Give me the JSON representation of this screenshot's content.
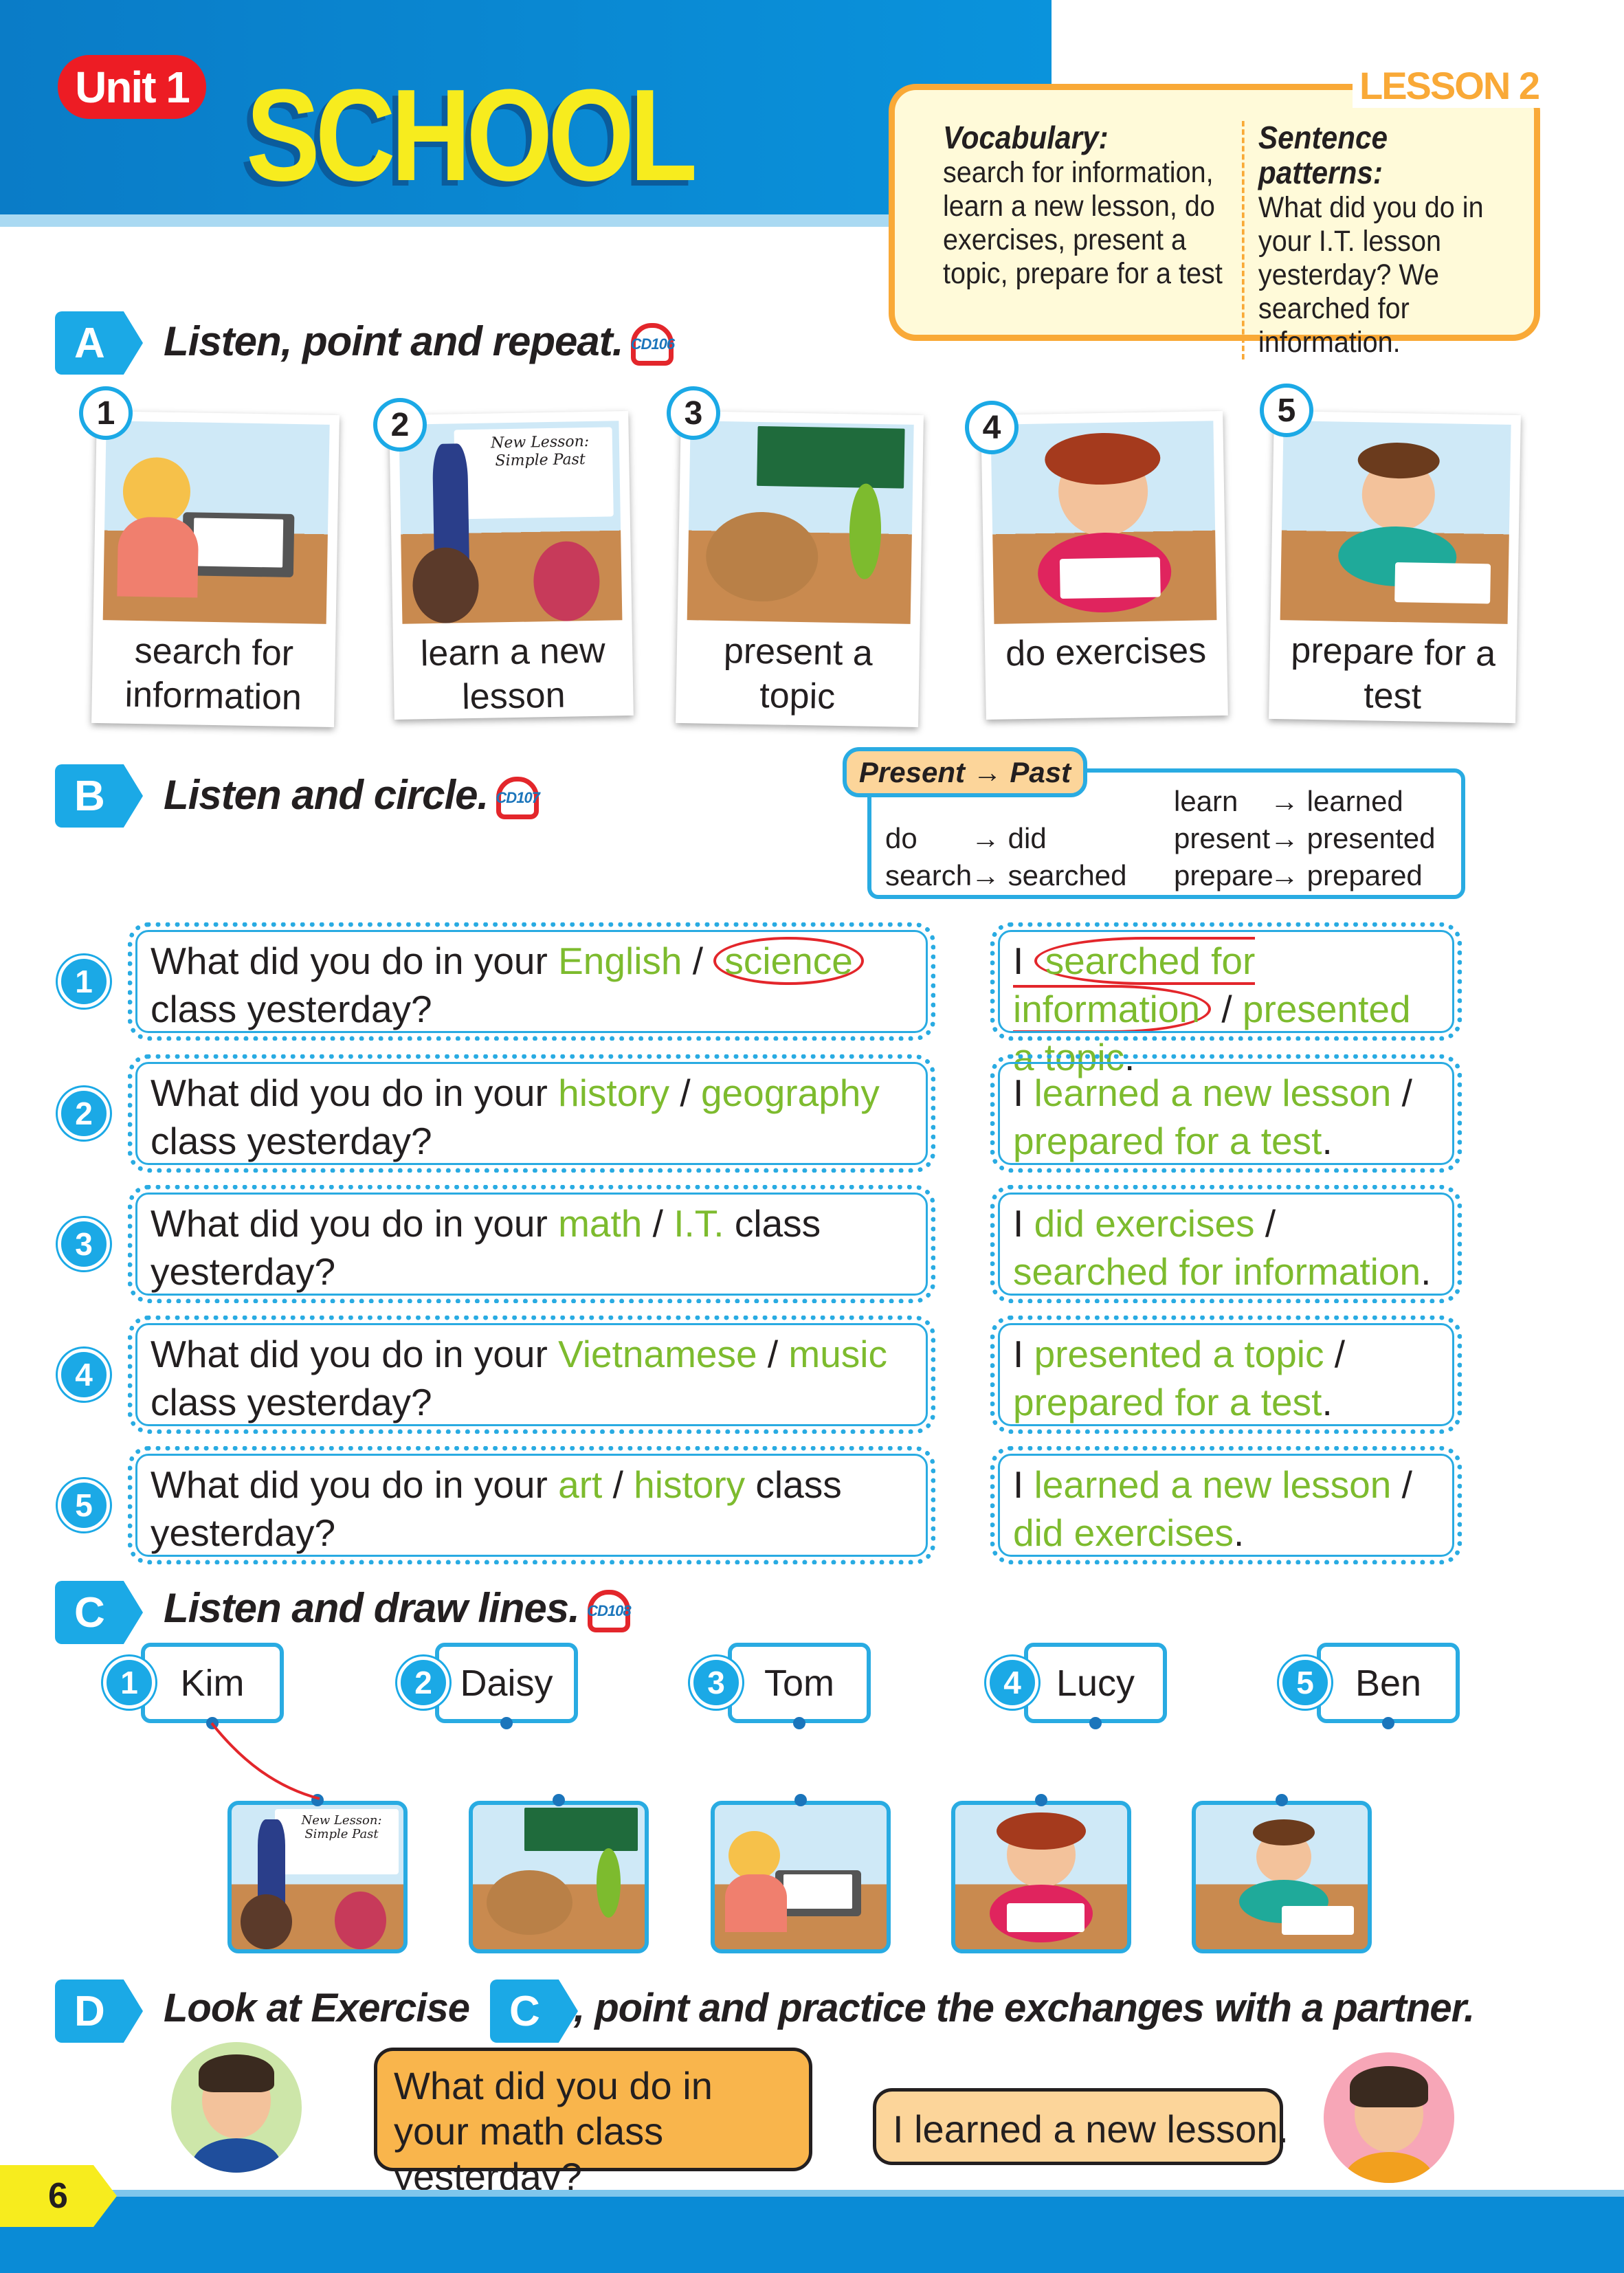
{
  "header": {
    "unit": "Unit 1",
    "title": "SCHOOL"
  },
  "lesson": {
    "tag": "LESSON 2",
    "vocab_title": "Vocabulary:",
    "vocab_text": "search for information, learn a new lesson, do exercises, present a topic, prepare for a test",
    "patterns_title": "Sentence patterns:",
    "patterns_text": "What did you do in your I.T. lesson yesterday? We searched for information."
  },
  "sectionA": {
    "badge": "A",
    "title": "Listen, point and repeat.",
    "cd": "CD1",
    "track": "06",
    "items": [
      {
        "num": "1",
        "caption": "search for information",
        "icon": "laptop-search"
      },
      {
        "num": "2",
        "caption": "learn a new lesson",
        "icon": "teacher-board",
        "board": "New Lesson: Simple Past"
      },
      {
        "num": "3",
        "caption": "present a topic",
        "icon": "classroom-present"
      },
      {
        "num": "4",
        "caption": "do exercises",
        "icon": "girl-book"
      },
      {
        "num": "5",
        "caption": "prepare for a test",
        "icon": "boy-study"
      }
    ]
  },
  "sectionB": {
    "badge": "B",
    "title": "Listen and circle.",
    "cd": "CD1",
    "track": "07",
    "table": {
      "tag": "Present → Past",
      "pairs": [
        [
          "do",
          "did"
        ],
        [
          "search",
          "searched"
        ],
        [
          "learn",
          "learned"
        ],
        [
          "present",
          "presented"
        ],
        [
          "prepare",
          "prepared"
        ]
      ]
    },
    "rows": [
      {
        "num": "1",
        "q_pre": "What did you do in your ",
        "q_a": "English",
        "q_sep": " / ",
        "q_b": "science",
        "q_post": " class yesterday?",
        "q_circled": "b",
        "a_pre": "I ",
        "a_a": "searched for information",
        "a_sep": " / ",
        "a_b": "presented a topic",
        "a_post": ".",
        "a_circled": "a"
      },
      {
        "num": "2",
        "q_pre": "What did you do in your ",
        "q_a": "history",
        "q_sep": " / ",
        "q_b": "geography",
        "q_post": " class yesterday?",
        "a_pre": "I ",
        "a_a": "learned a new lesson",
        "a_sep": " / ",
        "a_b": "prepared for a test",
        "a_post": "."
      },
      {
        "num": "3",
        "q_pre": "What did you do in your ",
        "q_a": "math",
        "q_sep": " / ",
        "q_b": "I.T.",
        "q_post": " class yesterday?",
        "a_pre": "I ",
        "a_a": "did exercises",
        "a_sep": " / ",
        "a_b": "searched for information",
        "a_post": "."
      },
      {
        "num": "4",
        "q_pre": "What did you do in your ",
        "q_a": "Vietnamese",
        "q_sep": " / ",
        "q_b": "music",
        "q_post": " class yesterday?",
        "a_pre": "I ",
        "a_a": "presented a topic",
        "a_sep": " / ",
        "a_b": "prepared for a test",
        "a_post": "."
      },
      {
        "num": "5",
        "q_pre": "What did you do in your ",
        "q_a": "art",
        "q_sep": " / ",
        "q_b": "history",
        "q_post": " class yesterday?",
        "a_pre": "I ",
        "a_a": "learned a new lesson",
        "a_sep": " / ",
        "a_b": "did exercises",
        "a_post": "."
      }
    ]
  },
  "sectionC": {
    "badge": "C",
    "title": "Listen and draw lines.",
    "cd": "CD1",
    "track": "08",
    "names": [
      {
        "num": "1",
        "name": "Kim"
      },
      {
        "num": "2",
        "name": "Daisy"
      },
      {
        "num": "3",
        "name": "Tom"
      },
      {
        "num": "4",
        "name": "Lucy"
      },
      {
        "num": "5",
        "name": "Ben"
      }
    ],
    "pictures": [
      "teacher-board",
      "classroom-present",
      "laptop-search",
      "girl-book",
      "boy-study"
    ],
    "board": "New Lesson: Simple Past"
  },
  "sectionD": {
    "badge": "D",
    "title_pre": "Look at Exercise",
    "ref_badge": "C",
    "title_post": ", point and practice the exchanges with a partner.",
    "boy_bubble": "What did you do in your math class yesterday?",
    "girl_bubble": "I learned a new lesson."
  },
  "footer": {
    "page": "6"
  },
  "colors": {
    "blue": "#0a8bd6",
    "green": "#7dbb2e",
    "orange": "#f9a937",
    "red": "#ed1c24",
    "yellow": "#f7ec1e"
  }
}
